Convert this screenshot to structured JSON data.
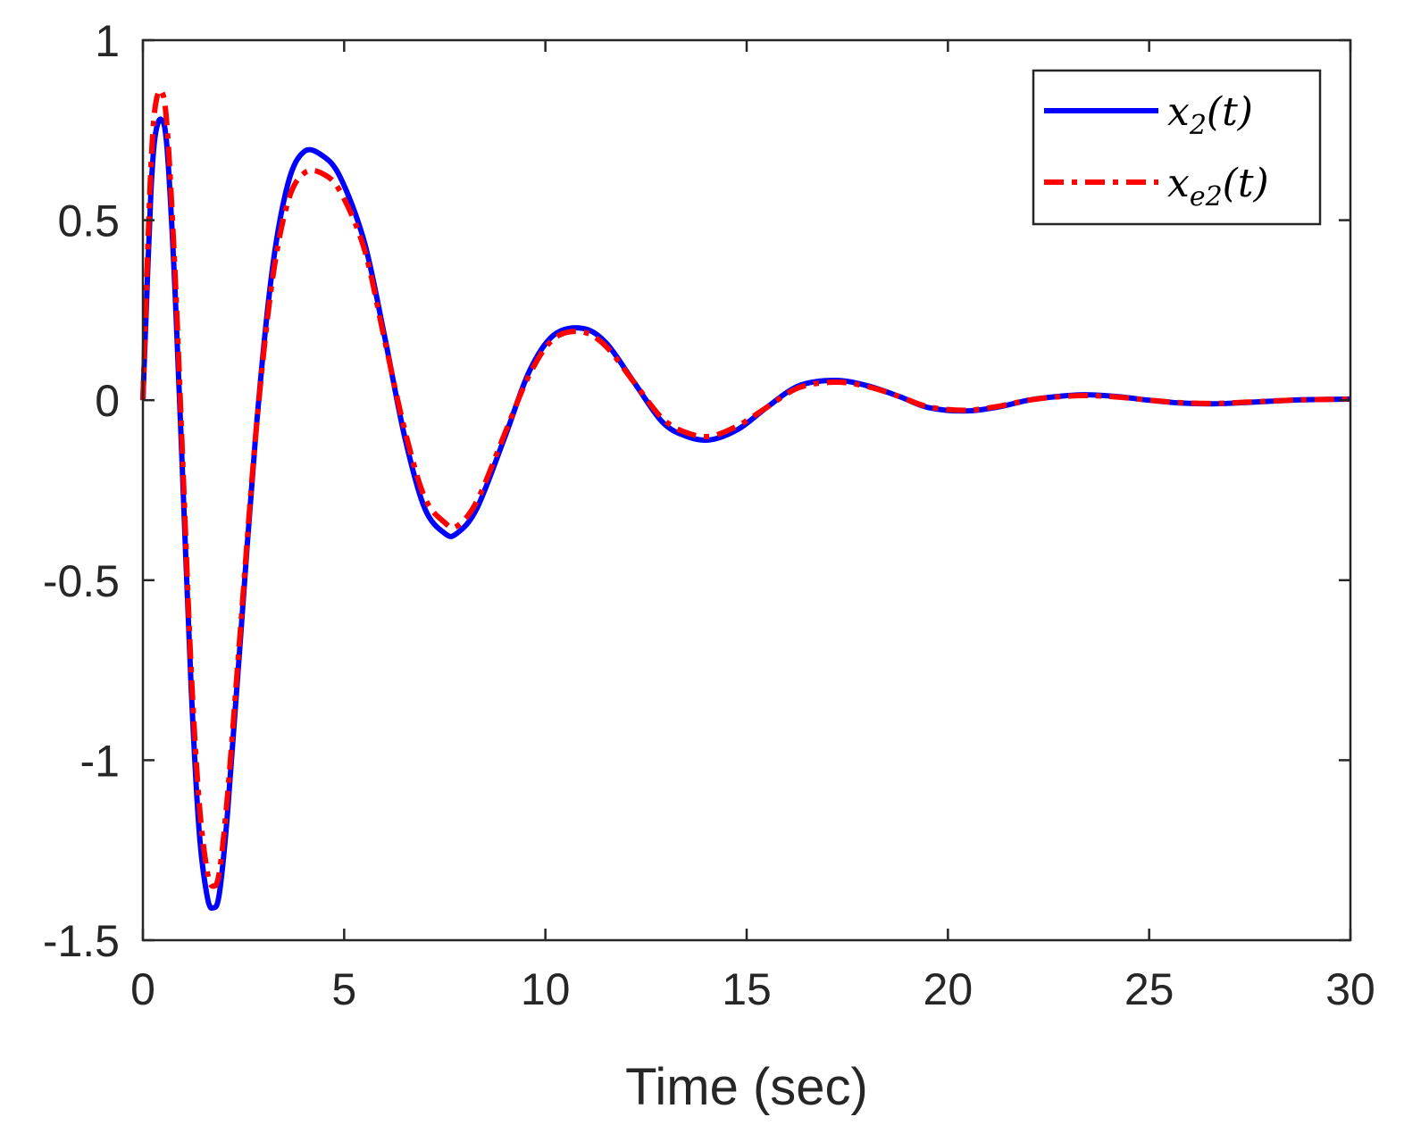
{
  "chart_data": {
    "type": "line",
    "title": "",
    "xlabel": "Time (sec)",
    "ylabel": "",
    "xlim": [
      0,
      30
    ],
    "ylim": [
      -1.5,
      1
    ],
    "xticks": [
      0,
      5,
      10,
      15,
      20,
      25,
      30
    ],
    "xtick_labels": [
      "0",
      "5",
      "10",
      "15",
      "20",
      "25",
      "30"
    ],
    "yticks": [
      1,
      0.5,
      0,
      -0.5,
      -1,
      -1.5
    ],
    "ytick_labels": [
      "1",
      "0.5",
      "0",
      "-0.5",
      "-1",
      "-1.5"
    ],
    "grid": false,
    "legend_position": "top-right",
    "series": [
      {
        "name": "x2(t)",
        "legend": {
          "base": "x",
          "sub": "2",
          "arg": "(t)"
        },
        "color": "#0000ff",
        "line_style": "solid",
        "points": [
          [
            0,
            0
          ],
          [
            0.1,
            0.3
          ],
          [
            0.2,
            0.58
          ],
          [
            0.3,
            0.73
          ],
          [
            0.45,
            0.78
          ],
          [
            0.6,
            0.7
          ],
          [
            0.8,
            0.3
          ],
          [
            1.0,
            -0.25
          ],
          [
            1.2,
            -0.8
          ],
          [
            1.4,
            -1.2
          ],
          [
            1.6,
            -1.38
          ],
          [
            1.75,
            -1.41
          ],
          [
            1.9,
            -1.37
          ],
          [
            2.1,
            -1.15
          ],
          [
            2.4,
            -0.7
          ],
          [
            2.8,
            -0.1
          ],
          [
            3.2,
            0.35
          ],
          [
            3.6,
            0.6
          ],
          [
            4.0,
            0.69
          ],
          [
            4.45,
            0.68
          ],
          [
            4.9,
            0.62
          ],
          [
            5.5,
            0.44
          ],
          [
            6.0,
            0.18
          ],
          [
            6.5,
            -0.1
          ],
          [
            7.0,
            -0.3
          ],
          [
            7.5,
            -0.37
          ],
          [
            7.8,
            -0.37
          ],
          [
            8.3,
            -0.3
          ],
          [
            9.0,
            -0.1
          ],
          [
            9.6,
            0.08
          ],
          [
            10.2,
            0.18
          ],
          [
            10.9,
            0.2
          ],
          [
            11.5,
            0.16
          ],
          [
            12.2,
            0.05
          ],
          [
            12.9,
            -0.06
          ],
          [
            13.5,
            -0.1
          ],
          [
            14.1,
            -0.11
          ],
          [
            14.8,
            -0.08
          ],
          [
            15.5,
            -0.02
          ],
          [
            16.3,
            0.04
          ],
          [
            17.2,
            0.055
          ],
          [
            18.0,
            0.04
          ],
          [
            18.8,
            0.01
          ],
          [
            19.5,
            -0.02
          ],
          [
            20.4,
            -0.03
          ],
          [
            21.2,
            -0.02
          ],
          [
            22.0,
            0.0
          ],
          [
            22.7,
            0.01
          ],
          [
            23.4,
            0.015
          ],
          [
            24.2,
            0.01
          ],
          [
            25.0,
            0.0
          ],
          [
            25.8,
            -0.008
          ],
          [
            26.6,
            -0.01
          ],
          [
            27.5,
            -0.006
          ],
          [
            28.5,
            0.0
          ],
          [
            29.3,
            0.002
          ],
          [
            30,
            0.003
          ]
        ]
      },
      {
        "name": "xe2(t)",
        "legend": {
          "base": "x",
          "sub": "e2",
          "arg": "(t)"
        },
        "color": "#ff0000",
        "line_style": "dash-dot",
        "points": [
          [
            0,
            0
          ],
          [
            0.1,
            0.35
          ],
          [
            0.2,
            0.65
          ],
          [
            0.3,
            0.81
          ],
          [
            0.45,
            0.86
          ],
          [
            0.6,
            0.76
          ],
          [
            0.8,
            0.35
          ],
          [
            1.0,
            -0.2
          ],
          [
            1.2,
            -0.75
          ],
          [
            1.4,
            -1.12
          ],
          [
            1.6,
            -1.31
          ],
          [
            1.75,
            -1.35
          ],
          [
            1.9,
            -1.31
          ],
          [
            2.1,
            -1.1
          ],
          [
            2.4,
            -0.67
          ],
          [
            2.8,
            -0.1
          ],
          [
            3.2,
            0.32
          ],
          [
            3.6,
            0.55
          ],
          [
            4.0,
            0.63
          ],
          [
            4.45,
            0.63
          ],
          [
            4.9,
            0.58
          ],
          [
            5.5,
            0.42
          ],
          [
            6.0,
            0.17
          ],
          [
            6.5,
            -0.08
          ],
          [
            7.0,
            -0.27
          ],
          [
            7.5,
            -0.34
          ],
          [
            7.8,
            -0.35
          ],
          [
            8.3,
            -0.28
          ],
          [
            9.0,
            -0.09
          ],
          [
            9.6,
            0.07
          ],
          [
            10.2,
            0.17
          ],
          [
            10.9,
            0.19
          ],
          [
            11.5,
            0.15
          ],
          [
            12.2,
            0.05
          ],
          [
            12.9,
            -0.05
          ],
          [
            13.5,
            -0.09
          ],
          [
            14.1,
            -0.1
          ],
          [
            14.8,
            -0.07
          ],
          [
            15.5,
            -0.02
          ],
          [
            16.3,
            0.035
          ],
          [
            17.2,
            0.05
          ],
          [
            18.0,
            0.038
          ],
          [
            18.8,
            0.01
          ],
          [
            19.5,
            -0.018
          ],
          [
            20.4,
            -0.028
          ],
          [
            21.2,
            -0.018
          ],
          [
            22.0,
            0.0
          ],
          [
            22.7,
            0.009
          ],
          [
            23.4,
            0.013
          ],
          [
            24.2,
            0.009
          ],
          [
            25.0,
            0.0
          ],
          [
            25.8,
            -0.007
          ],
          [
            26.6,
            -0.009
          ],
          [
            27.5,
            -0.005
          ],
          [
            28.5,
            0.0
          ],
          [
            29.3,
            0.002
          ],
          [
            30,
            0.003
          ]
        ]
      }
    ]
  }
}
